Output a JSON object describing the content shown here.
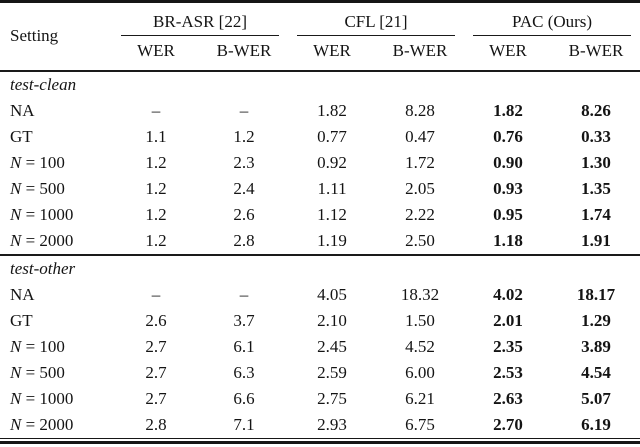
{
  "table": {
    "header": {
      "setting_label": "Setting",
      "groups": [
        {
          "label": "BR-ASR [22]"
        },
        {
          "label": "CFL [21]"
        },
        {
          "label": "PAC (Ours)"
        }
      ],
      "subheaders": [
        "WER",
        "B-WER",
        "WER",
        "B-WER",
        "WER",
        "B-WER"
      ]
    },
    "sections": [
      {
        "label": "test-clean",
        "rows": [
          {
            "setting": "NA",
            "values": [
              "–",
              "–",
              "1.82",
              "8.28",
              "1.82",
              "8.26"
            ]
          },
          {
            "setting": "GT",
            "values": [
              "1.1",
              "1.2",
              "0.77",
              "0.47",
              "0.76",
              "0.33"
            ]
          },
          {
            "setting": "N = 100",
            "values": [
              "1.2",
              "2.3",
              "0.92",
              "1.72",
              "0.90",
              "1.30"
            ]
          },
          {
            "setting": "N = 500",
            "values": [
              "1.2",
              "2.4",
              "1.11",
              "2.05",
              "0.93",
              "1.35"
            ]
          },
          {
            "setting": "N = 1000",
            "values": [
              "1.2",
              "2.6",
              "1.12",
              "2.22",
              "0.95",
              "1.74"
            ]
          },
          {
            "setting": "N = 2000",
            "values": [
              "1.2",
              "2.8",
              "1.19",
              "2.50",
              "1.18",
              "1.91"
            ]
          }
        ]
      },
      {
        "label": "test-other",
        "rows": [
          {
            "setting": "NA",
            "values": [
              "–",
              "–",
              "4.05",
              "18.32",
              "4.02",
              "18.17"
            ]
          },
          {
            "setting": "GT",
            "values": [
              "2.6",
              "3.7",
              "2.10",
              "1.50",
              "2.01",
              "1.29"
            ]
          },
          {
            "setting": "N = 100",
            "values": [
              "2.7",
              "6.1",
              "2.45",
              "4.52",
              "2.35",
              "3.89"
            ]
          },
          {
            "setting": "N = 500",
            "values": [
              "2.7",
              "6.3",
              "2.59",
              "6.00",
              "2.53",
              "4.54"
            ]
          },
          {
            "setting": "N = 1000",
            "values": [
              "2.7",
              "6.6",
              "2.75",
              "6.21",
              "2.63",
              "5.07"
            ]
          },
          {
            "setting": "N = 2000",
            "values": [
              "2.8",
              "7.1",
              "2.93",
              "6.75",
              "2.70",
              "6.19"
            ]
          }
        ]
      }
    ]
  }
}
